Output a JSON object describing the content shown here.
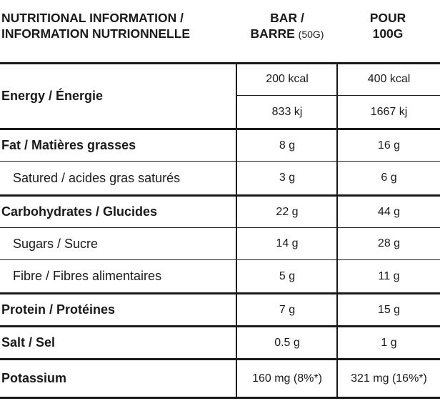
{
  "header": {
    "label_line1": "NUTRITIONAL INFORMATION /",
    "label_line2": "INFORMATION NUTRIONNELLE",
    "bar_line1": "BAR /",
    "bar_line2": "BARRE",
    "bar_note": "(50G)",
    "per100_line1": "POUR",
    "per100_line2": "100G"
  },
  "rows": [
    {
      "label": "Energy / Énergie",
      "bar": "200 kcal",
      "per100": "400 kcal"
    },
    {
      "label": "",
      "bar": "833 kj",
      "per100": "1667 kj"
    },
    {
      "label": "Fat / Matières grasses",
      "bar": "8 g",
      "per100": "16 g"
    },
    {
      "label": "Satured / acides gras saturés",
      "bar": "3 g",
      "per100": "6 g"
    },
    {
      "label": "Carbohydrates / Glucides",
      "bar": "22 g",
      "per100": "44 g"
    },
    {
      "label": "Sugars / Sucre",
      "bar": "14 g",
      "per100": "28 g"
    },
    {
      "label": "Fibre / Fibres alimentaires",
      "bar": "5 g",
      "per100": "11 g"
    },
    {
      "label": "Protein / Protéines",
      "bar": "7 g",
      "per100": "15 g"
    },
    {
      "label": "Salt / Sel",
      "bar": "0.5 g",
      "per100": "1 g"
    },
    {
      "label": "Potassium",
      "bar": "160 mg (8%*)",
      "per100": "321 mg (16%*)"
    }
  ]
}
